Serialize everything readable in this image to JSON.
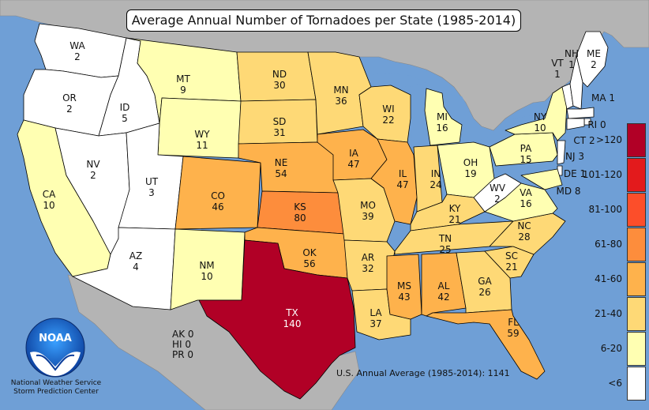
{
  "title": "Average Annual Number of Tornadoes per State (1985-2014)",
  "legend": [
    {
      "label": ">120",
      "color": "#b10026"
    },
    {
      "label": "101-120",
      "color": "#e31a1c"
    },
    {
      "label": "81-100",
      "color": "#fc4e2a"
    },
    {
      "label": "61-80",
      "color": "#fd8d3c"
    },
    {
      "label": "41-60",
      "color": "#feb24c"
    },
    {
      "label": "21-40",
      "color": "#fed976"
    },
    {
      "label": "6-20",
      "color": "#ffffb2"
    },
    {
      "label": "<6",
      "color": "#ffffff"
    }
  ],
  "colors": {
    "ocean": "#6f9fd6",
    "land_outside": "#b4b4b4",
    "lakes": "#6f9fd6"
  },
  "states": [
    {
      "abbr": "WA",
      "count": "2"
    },
    {
      "abbr": "OR",
      "count": "2"
    },
    {
      "abbr": "CA",
      "count": "10"
    },
    {
      "abbr": "ID",
      "count": "5"
    },
    {
      "abbr": "NV",
      "count": "2"
    },
    {
      "abbr": "MT",
      "count": "9"
    },
    {
      "abbr": "WY",
      "count": "11"
    },
    {
      "abbr": "UT",
      "count": "3"
    },
    {
      "abbr": "AZ",
      "count": "4"
    },
    {
      "abbr": "CO",
      "count": "46"
    },
    {
      "abbr": "NM",
      "count": "10"
    },
    {
      "abbr": "ND",
      "count": "30"
    },
    {
      "abbr": "SD",
      "count": "31"
    },
    {
      "abbr": "NE",
      "count": "54"
    },
    {
      "abbr": "KS",
      "count": "80"
    },
    {
      "abbr": "OK",
      "count": "56"
    },
    {
      "abbr": "TX",
      "count": "140"
    },
    {
      "abbr": "MN",
      "count": "36"
    },
    {
      "abbr": "IA",
      "count": "47"
    },
    {
      "abbr": "MO",
      "count": "39"
    },
    {
      "abbr": "AR",
      "count": "32"
    },
    {
      "abbr": "LA",
      "count": "37"
    },
    {
      "abbr": "WI",
      "count": "22"
    },
    {
      "abbr": "IL",
      "count": "47"
    },
    {
      "abbr": "MI",
      "count": "16"
    },
    {
      "abbr": "IN",
      "count": "24"
    },
    {
      "abbr": "OH",
      "count": "19"
    },
    {
      "abbr": "KY",
      "count": "21"
    },
    {
      "abbr": "TN",
      "count": "25"
    },
    {
      "abbr": "MS",
      "count": "43"
    },
    {
      "abbr": "AL",
      "count": "42"
    },
    {
      "abbr": "GA",
      "count": "26"
    },
    {
      "abbr": "FL",
      "count": "59"
    },
    {
      "abbr": "SC",
      "count": "21"
    },
    {
      "abbr": "NC",
      "count": "28"
    },
    {
      "abbr": "VA",
      "count": "16"
    },
    {
      "abbr": "WV",
      "count": "2"
    },
    {
      "abbr": "PA",
      "count": "15"
    },
    {
      "abbr": "NY",
      "count": "10"
    },
    {
      "abbr": "VT",
      "count": "1"
    },
    {
      "abbr": "NH",
      "count": "1"
    },
    {
      "abbr": "ME",
      "count": "2"
    },
    {
      "abbr": "MA",
      "count": "1"
    },
    {
      "abbr": "RI",
      "count": "0"
    },
    {
      "abbr": "CT",
      "count": "2"
    },
    {
      "abbr": "NJ",
      "count": "3"
    },
    {
      "abbr": "DE",
      "count": "1"
    },
    {
      "abbr": "MD",
      "count": "8"
    }
  ],
  "territories": [
    {
      "abbr": "AK",
      "count": "0"
    },
    {
      "abbr": "HI",
      "count": "0"
    },
    {
      "abbr": "PR",
      "count": "0"
    }
  ],
  "us_average": "U.S. Annual Average (1985-2014): 1141",
  "logo_text": "NOAA",
  "credit": [
    "National Weather Service",
    "Storm Prediction Center"
  ]
}
